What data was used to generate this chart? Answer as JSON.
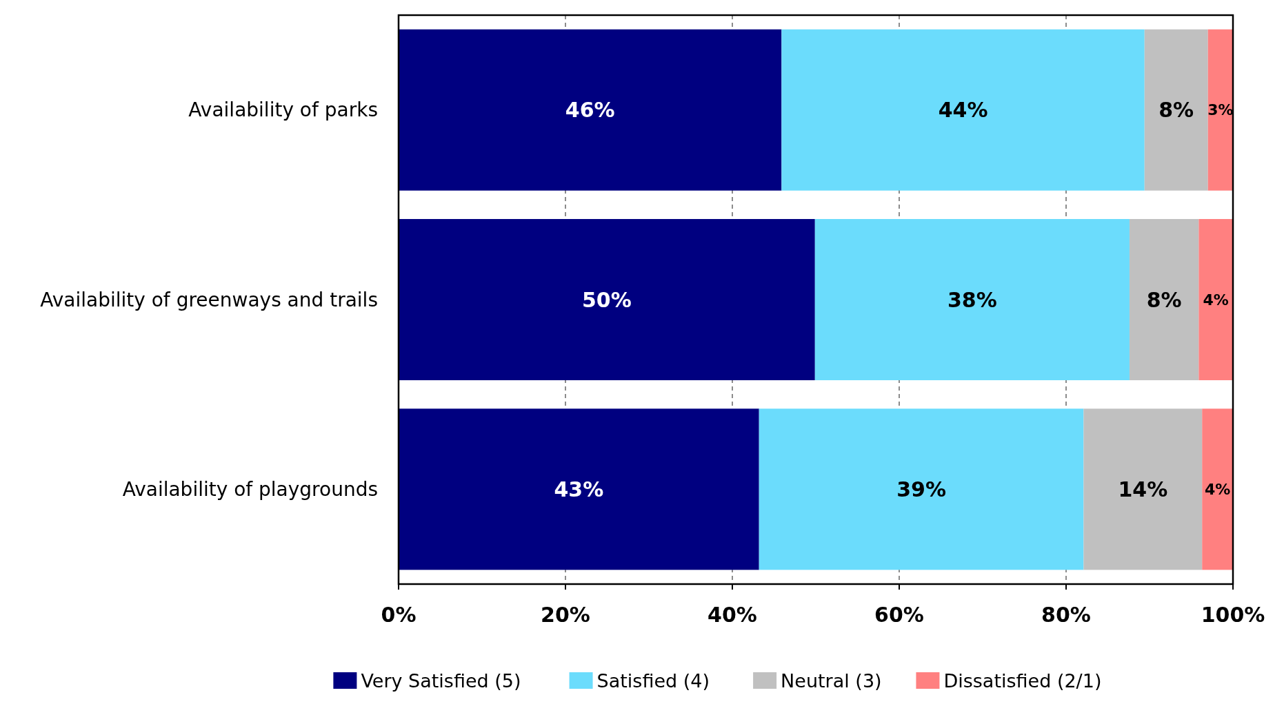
{
  "chart_data": {
    "type": "bar",
    "orientation": "horizontal",
    "stacked": true,
    "categories": [
      "Availability of parks",
      "Availability of greenways and trails",
      "Availability of playgrounds"
    ],
    "series": [
      {
        "name": "Very Satisfied (5)",
        "color": "#000080",
        "values": [
          45.9,
          49.9,
          43.2
        ],
        "value_labels": [
          "46%",
          "50%",
          "43%"
        ]
      },
      {
        "name": "Satisfied (4)",
        "color": "#6bdcfc",
        "values": [
          43.5,
          37.7,
          38.9
        ],
        "value_labels": [
          "44%",
          "38%",
          "39%"
        ]
      },
      {
        "name": "Neutral (3)",
        "color": "#c0c0c0",
        "values": [
          7.6,
          8.3,
          14.2
        ],
        "value_labels": [
          "8%",
          "8%",
          "14%"
        ]
      },
      {
        "name": "Dissatisfied (2/1)",
        "color": "#ff8080",
        "values": [
          3.0,
          4.1,
          3.7
        ],
        "value_labels": [
          "3%",
          "4%",
          "4%"
        ]
      }
    ],
    "xlim": [
      0,
      100
    ],
    "xticks": [
      {
        "value": 0,
        "label": "0%"
      },
      {
        "value": 20,
        "label": "20%"
      },
      {
        "value": 40,
        "label": "40%"
      },
      {
        "value": 60,
        "label": "60%"
      },
      {
        "value": 80,
        "label": "80%"
      },
      {
        "value": 100,
        "label": "100%"
      }
    ],
    "grid": "x",
    "legend": "bottom"
  }
}
